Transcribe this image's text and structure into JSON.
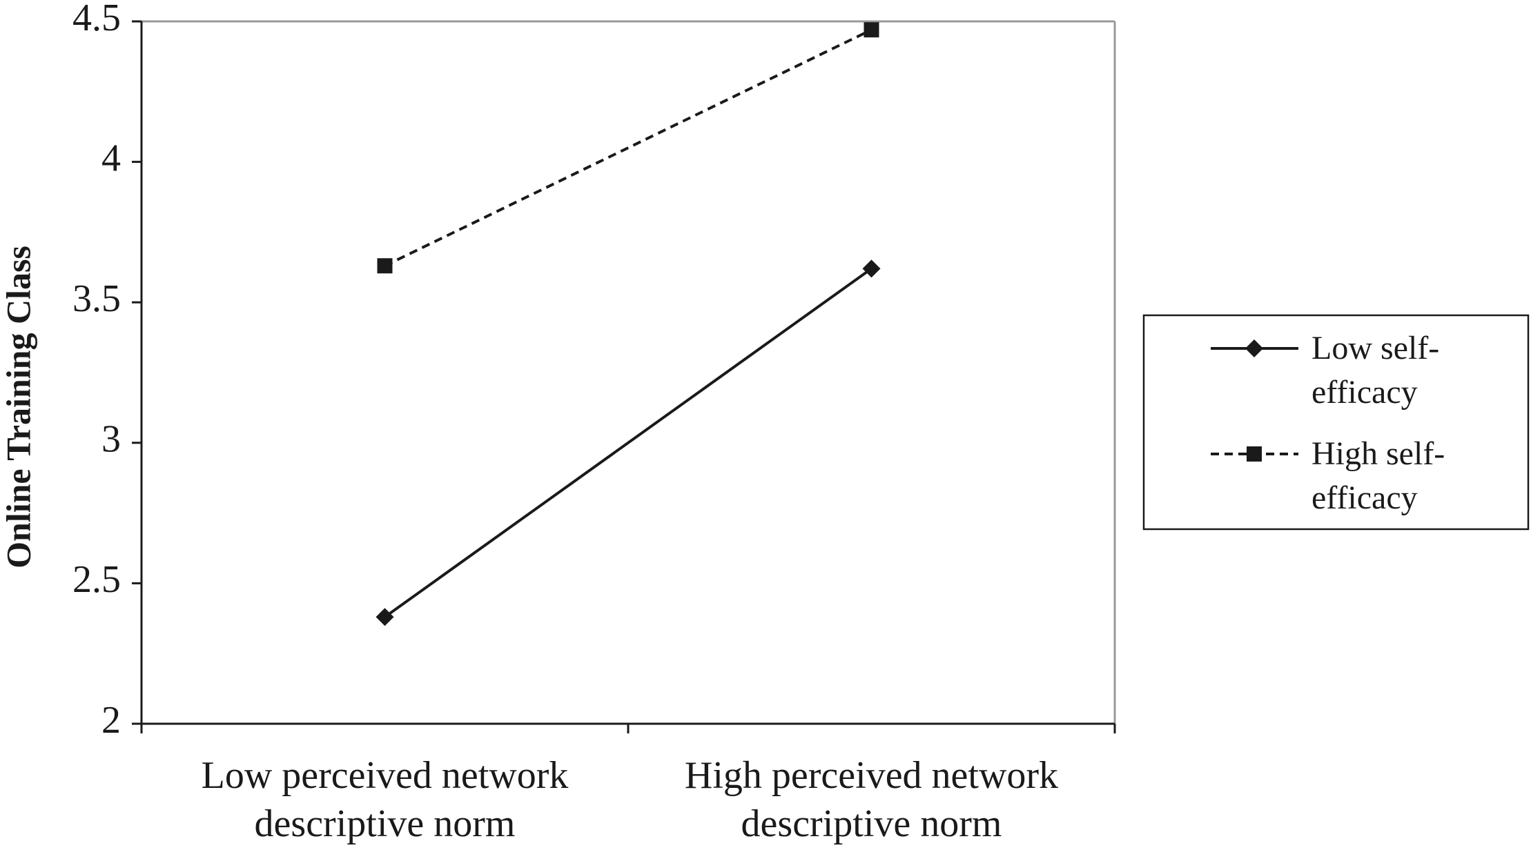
{
  "chart_data": {
    "type": "line",
    "y_label": "Online Training Class",
    "categories": [
      "Low perceived network descriptive norm",
      "High perceived network descriptive norm"
    ],
    "series": [
      {
        "name": "Low self-efficacy",
        "color": "#1a1a1a",
        "marker": "diamond",
        "line_style": "solid",
        "values": [
          2.38,
          3.62
        ]
      },
      {
        "name": "High self-efficacy",
        "color": "#1a1a1a",
        "marker": "square",
        "line_style": "dashed",
        "values": [
          3.63,
          4.47
        ]
      }
    ],
    "ylim": [
      2,
      4.5
    ],
    "yticks": [
      2,
      2.5,
      3,
      3.5,
      4,
      4.5
    ],
    "grid": false,
    "legend": "right"
  }
}
